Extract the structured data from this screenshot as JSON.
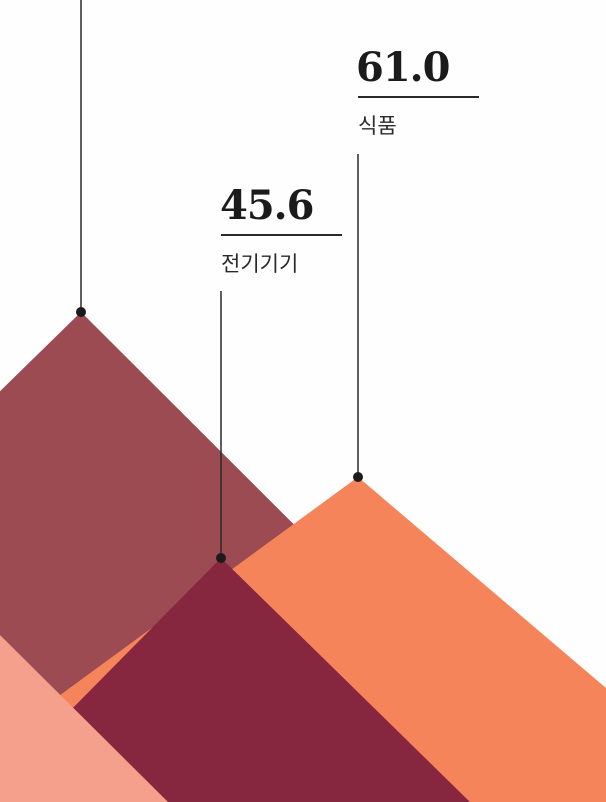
{
  "chart_data": {
    "type": "area",
    "title": "",
    "series": [
      {
        "category": "",
        "value": null,
        "color": "#9d4b52"
      },
      {
        "category": "전기기기",
        "value": 45.6,
        "value_label": "45.6",
        "color": "#86263f"
      },
      {
        "category": "식품",
        "value": 61.0,
        "value_label": "61.0",
        "color": "#f5845a"
      },
      {
        "category": "",
        "value": null,
        "color": "#f4a08d"
      }
    ],
    "grid": false,
    "legend": "none"
  }
}
